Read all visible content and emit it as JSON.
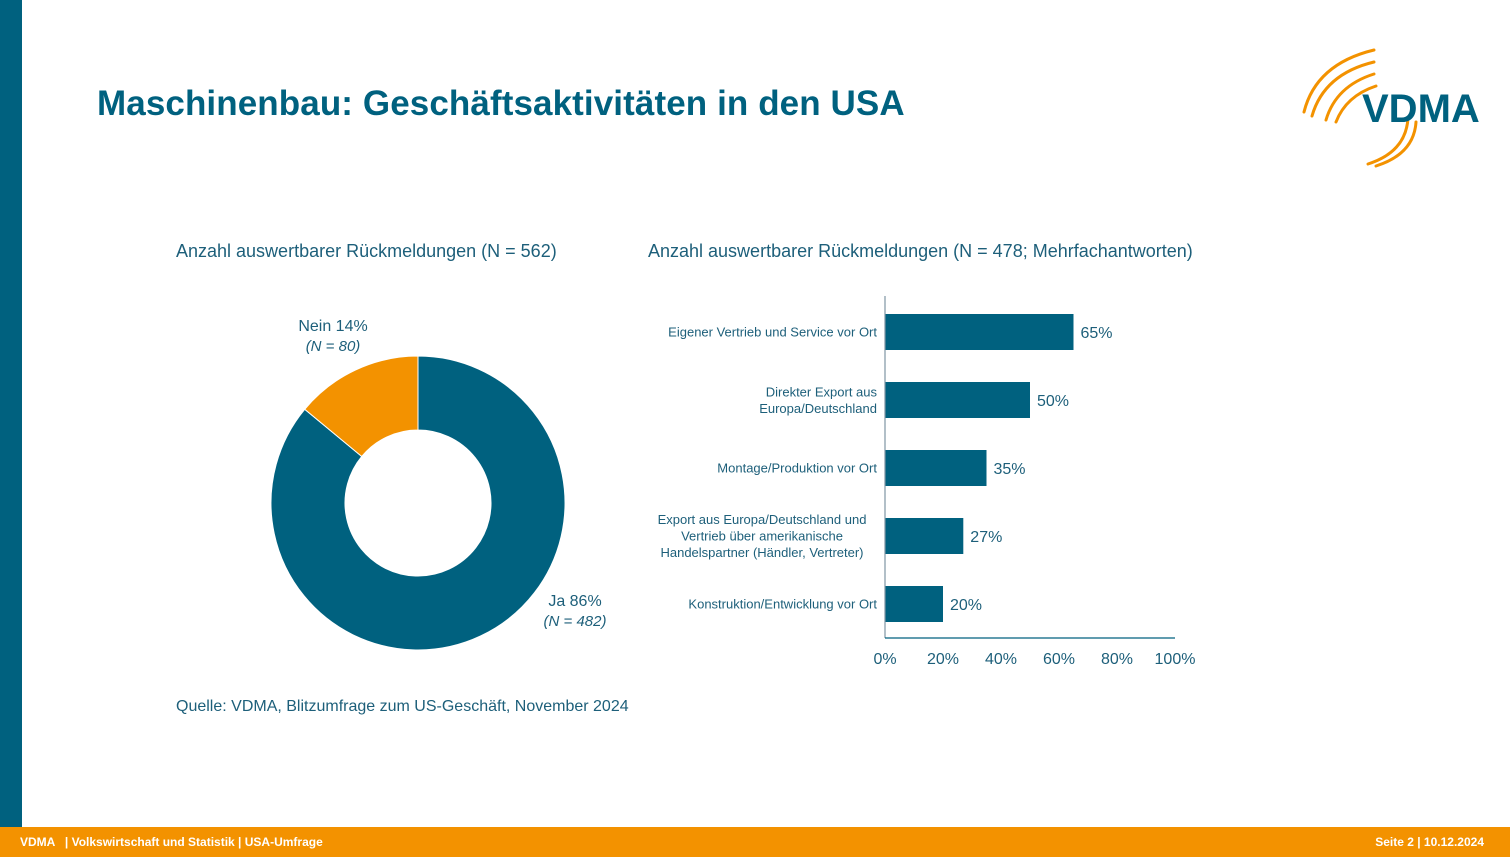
{
  "slide": {
    "title": "Maschinenbau: Geschäftsaktivitäten in den USA",
    "logo_text": "VDMA",
    "source": "Quelle: VDMA, Blitzumfrage zum US-Geschäft, November 2024"
  },
  "footer": {
    "left": "VDMA   | Volkswirtschaft und Statistik | USA-Umfrage",
    "right": "Seite 2 | 10.12.2024"
  },
  "colors": {
    "primary": "#00617f",
    "accent": "#f39200",
    "text": "#1d5f7a"
  },
  "chart_data": [
    {
      "type": "pie",
      "variant": "donut",
      "title": "Anzahl auswertbarer Rückmeldungen (N = 562)",
      "slices": [
        {
          "label": "Ja",
          "value": 86,
          "n_label": "(N = 482)",
          "display": "Ja 86%",
          "color": "#00617f"
        },
        {
          "label": "Nein",
          "value": 14,
          "n_label": "(N = 80)",
          "display": "Nein 14%",
          "color": "#f39200"
        }
      ]
    },
    {
      "type": "bar",
      "orientation": "horizontal",
      "title": "Anzahl auswertbarer Rückmeldungen (N = 478; Mehrfachantworten)",
      "categories": [
        [
          "Eigener Vertrieb und Service vor Ort"
        ],
        [
          "Direkter Export aus",
          "Europa/Deutschland"
        ],
        [
          "Montage/Produktion vor Ort"
        ],
        [
          "Export aus Europa/Deutschland und",
          "Vertrieb über amerikanische",
          "Handelspartner (Händler, Vertreter)"
        ],
        [
          "Konstruktion/Entwicklung vor Ort"
        ]
      ],
      "values": [
        65,
        50,
        35,
        27,
        20
      ],
      "data_labels": [
        "65%",
        "50%",
        "35%",
        "27%",
        "20%"
      ],
      "xlim": [
        0,
        100
      ],
      "xticks": [
        "0%",
        "20%",
        "40%",
        "60%",
        "80%",
        "100%"
      ],
      "xtick_values": [
        0,
        20,
        40,
        60,
        80,
        100
      ],
      "grid": false,
      "bar_color": "#00617f"
    }
  ]
}
